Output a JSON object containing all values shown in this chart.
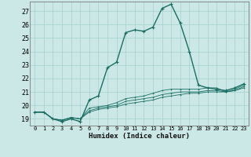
{
  "xlabel": "Humidex (Indice chaleur)",
  "ylabel": "",
  "bg_color": "#cce8e6",
  "grid_color": "#aad4d2",
  "line_color": "#1a6e64",
  "xlim": [
    -0.5,
    23.5
  ],
  "ylim": [
    18.5,
    27.7
  ],
  "xticks": [
    0,
    1,
    2,
    3,
    4,
    5,
    6,
    7,
    8,
    9,
    10,
    11,
    12,
    13,
    14,
    15,
    16,
    17,
    18,
    19,
    20,
    21,
    22,
    23
  ],
  "yticks": [
    19,
    20,
    21,
    22,
    23,
    24,
    25,
    26,
    27
  ],
  "series": [
    [
      19.5,
      19.5,
      19.0,
      18.8,
      19.0,
      18.8,
      20.4,
      20.7,
      22.8,
      23.2,
      25.4,
      25.6,
      25.5,
      25.8,
      27.2,
      27.5,
      26.1,
      24.0,
      21.5,
      21.3,
      21.2,
      21.1,
      21.3,
      21.6
    ],
    [
      19.5,
      19.5,
      19.0,
      18.9,
      19.1,
      19.0,
      19.8,
      19.9,
      20.0,
      20.2,
      20.5,
      20.6,
      20.7,
      20.9,
      21.1,
      21.2,
      21.2,
      21.2,
      21.2,
      21.3,
      21.3,
      21.0,
      21.2,
      21.5
    ],
    [
      19.5,
      19.5,
      19.0,
      18.9,
      19.1,
      19.0,
      19.6,
      19.8,
      19.9,
      20.0,
      20.3,
      20.4,
      20.5,
      20.6,
      20.8,
      20.9,
      21.0,
      21.0,
      21.0,
      21.1,
      21.1,
      21.0,
      21.1,
      21.4
    ],
    [
      19.5,
      19.5,
      19.0,
      18.9,
      19.1,
      19.0,
      19.5,
      19.7,
      19.8,
      19.9,
      20.1,
      20.2,
      20.3,
      20.4,
      20.6,
      20.7,
      20.8,
      20.9,
      20.9,
      21.0,
      21.0,
      21.0,
      21.1,
      21.3
    ]
  ]
}
